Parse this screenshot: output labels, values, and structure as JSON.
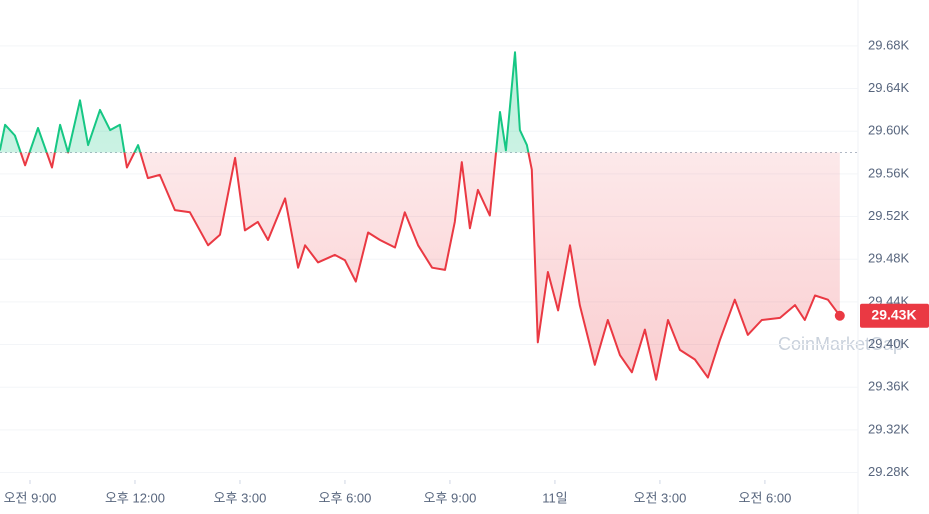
{
  "chart_data": {
    "type": "line",
    "x": [
      -0.86,
      -0.71,
      -0.43,
      -0.14,
      0.23,
      0.63,
      0.86,
      1.09,
      1.43,
      1.66,
      2.0,
      2.29,
      2.57,
      2.77,
      3.09,
      3.37,
      3.71,
      4.14,
      4.57,
      5.09,
      5.43,
      5.86,
      6.14,
      6.51,
      6.8,
      7.29,
      7.66,
      7.86,
      8.23,
      8.71,
      9.0,
      9.31,
      9.66,
      10.0,
      10.43,
      10.71,
      11.09,
      11.49,
      11.86,
      12.14,
      12.34,
      12.57,
      12.8,
      13.14,
      13.43,
      13.6,
      13.86,
      14.0,
      14.2,
      14.34,
      14.51,
      14.8,
      15.09,
      15.43,
      15.71,
      16.14,
      16.51,
      16.86,
      17.2,
      17.57,
      17.89,
      18.23,
      18.57,
      19.0,
      19.37,
      19.71,
      20.14,
      20.51,
      20.91,
      21.43,
      21.86,
      22.14,
      22.43,
      22.8,
      23.14
    ],
    "series": [
      {
        "color": "#ea3943",
        "up_color": "#16c784",
        "values": [
          29582,
          29606,
          29596,
          29568,
          29603,
          29566,
          29606,
          29580,
          29629,
          29587,
          29620,
          29601,
          29606,
          29566,
          29587,
          29556,
          29559,
          29526,
          29524,
          29493,
          29503,
          29575,
          29507,
          29515,
          29498,
          29537,
          29472,
          29493,
          29477,
          29484,
          29479,
          29459,
          29505,
          29498,
          29491,
          29524,
          29493,
          29472,
          29470,
          29515,
          29571,
          29509,
          29545,
          29521,
          29618,
          29582,
          29674,
          29601,
          29587,
          29564,
          29402,
          29468,
          29432,
          29493,
          29437,
          29381,
          29423,
          29390,
          29374,
          29414,
          29367,
          29423,
          29395,
          29386,
          29369,
          29404,
          29442,
          29409,
          29423,
          29425,
          29437,
          29423,
          29446,
          29442,
          29427
        ]
      }
    ],
    "baseline": 29580,
    "current_label": {
      "value": 29427,
      "label": "29.43K"
    },
    "xlim": [
      -0.857,
      23.66
    ],
    "xticks": [
      {
        "value": 0,
        "label": "오전 9:00"
      },
      {
        "value": 3,
        "label": "오후 12:00"
      },
      {
        "value": 6,
        "label": "오후 3:00"
      },
      {
        "value": 9,
        "label": "오후 6:00"
      },
      {
        "value": 12,
        "label": "오후 9:00"
      },
      {
        "value": 15,
        "label": "11일"
      },
      {
        "value": 18,
        "label": "오전 3:00"
      },
      {
        "value": 21,
        "label": "오전 6:00"
      }
    ],
    "ylim": [
      29273,
      29723
    ],
    "yticks": [
      {
        "value": 29280,
        "label": "29.28K"
      },
      {
        "value": 29320,
        "label": "29.32K"
      },
      {
        "value": 29360,
        "label": "29.36K"
      },
      {
        "value": 29400,
        "label": "29.40K"
      },
      {
        "value": 29440,
        "label": "29.44K"
      },
      {
        "value": 29480,
        "label": "29.48K"
      },
      {
        "value": 29520,
        "label": "29.52K"
      },
      {
        "value": 29560,
        "label": "29.56K"
      },
      {
        "value": 29600,
        "label": "29.60K"
      },
      {
        "value": 29640,
        "label": "29.64K"
      },
      {
        "value": 29680,
        "label": "29.68K"
      }
    ],
    "grid": true,
    "watermark": "CoinMarketCap"
  }
}
